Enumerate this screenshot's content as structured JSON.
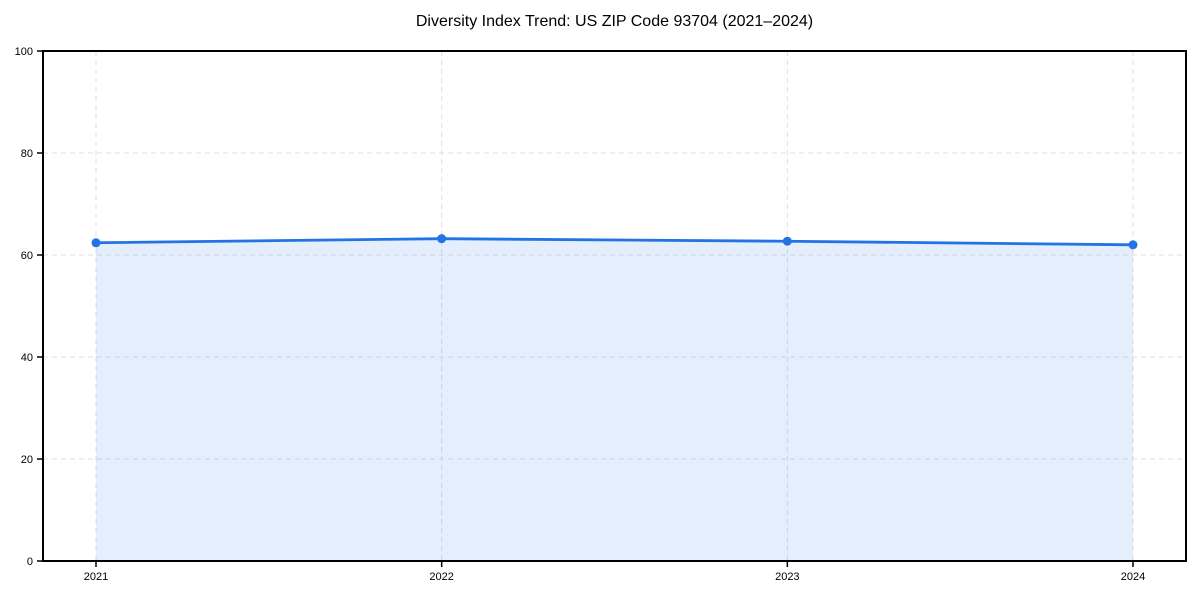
{
  "chart_data": {
    "type": "line",
    "title": "Diversity Index Trend: US ZIP Code 93704 (2021–2024)",
    "categories": [
      "2021",
      "2022",
      "2023",
      "2024"
    ],
    "series": [
      {
        "name": "Diversity Index",
        "values": [
          62.4,
          63.2,
          62.7,
          62.0
        ]
      }
    ],
    "xlabel": "",
    "ylabel": "",
    "ylim": [
      0,
      100
    ],
    "yticks": [
      0,
      20,
      40,
      60,
      80,
      100
    ],
    "grid": true,
    "grid_style": "dashed",
    "legend": "none",
    "area_fill": true,
    "marker": "circle",
    "colors": {
      "line": "#2273e3",
      "marker": "#2273e3",
      "fill": "#2273e3",
      "fill_opacity": 0.12,
      "grid": "#dfdfdf",
      "spine": "#000000",
      "text": "#000000",
      "background": "#ffffff"
    }
  }
}
